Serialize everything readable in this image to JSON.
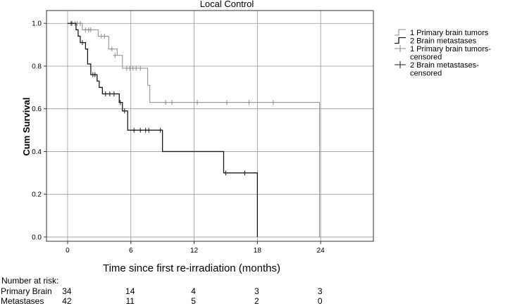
{
  "chart_data": {
    "type": "line",
    "title": "Local Control",
    "xlabel": "Time  since first re-irradiation (months)",
    "ylabel": "Cum Survival",
    "xlim": [
      -2,
      29
    ],
    "ylim": [
      -0.02,
      1.06
    ],
    "xticks": [
      0,
      6,
      12,
      18,
      24
    ],
    "yticks": [
      0.0,
      0.2,
      0.4,
      0.6,
      0.8,
      1.0
    ],
    "ytick_labels": [
      "0.0",
      "0.2",
      "0.4",
      "0.6",
      "0.8",
      "1.0"
    ],
    "grid": true,
    "legend_position": "right",
    "legend": [
      {
        "label": "1 Primary brain tumors",
        "kind": "line",
        "series": 0
      },
      {
        "label": "2 Brain metastases",
        "kind": "line",
        "series": 1
      },
      {
        "label": "1 Primary brain tumors-censored",
        "kind": "censor",
        "series": 0
      },
      {
        "label": "2 Brain metastases-censored",
        "kind": "censor",
        "series": 1
      }
    ],
    "series": [
      {
        "name": "1 Primary brain tumors",
        "color": "#8c8c8c",
        "steps": [
          [
            0,
            1.0
          ],
          [
            1.4,
            0.97
          ],
          [
            2.9,
            0.94
          ],
          [
            3.9,
            0.88
          ],
          [
            4.7,
            0.85
          ],
          [
            5.2,
            0.79
          ],
          [
            7.6,
            0.71
          ],
          [
            7.8,
            0.63
          ],
          [
            23.9,
            0.0
          ]
        ],
        "end_x": 24.0,
        "censored": [
          [
            0.3,
            1.0
          ],
          [
            0.7,
            1.0
          ],
          [
            0.9,
            1.0
          ],
          [
            1.2,
            1.0
          ],
          [
            1.7,
            0.97
          ],
          [
            2.0,
            0.97
          ],
          [
            2.2,
            0.97
          ],
          [
            3.2,
            0.94
          ],
          [
            3.5,
            0.94
          ],
          [
            4.2,
            0.88
          ],
          [
            4.5,
            0.85
          ],
          [
            5.6,
            0.79
          ],
          [
            5.9,
            0.79
          ],
          [
            6.2,
            0.79
          ],
          [
            6.5,
            0.79
          ],
          [
            6.9,
            0.79
          ],
          [
            9.3,
            0.63
          ],
          [
            9.9,
            0.63
          ],
          [
            12.3,
            0.63
          ],
          [
            15.1,
            0.63
          ],
          [
            17.2,
            0.63
          ],
          [
            19.5,
            0.63
          ]
        ]
      },
      {
        "name": "2 Brain metastases",
        "color": "#1a1a1a",
        "steps": [
          [
            0,
            1.0
          ],
          [
            0.8,
            0.97
          ],
          [
            1.0,
            0.94
          ],
          [
            1.2,
            0.91
          ],
          [
            1.7,
            0.88
          ],
          [
            1.9,
            0.81
          ],
          [
            2.2,
            0.76
          ],
          [
            2.8,
            0.73
          ],
          [
            3.0,
            0.7
          ],
          [
            3.3,
            0.67
          ],
          [
            4.9,
            0.63
          ],
          [
            5.2,
            0.59
          ],
          [
            5.7,
            0.5
          ],
          [
            9.0,
            0.4
          ],
          [
            14.8,
            0.3
          ],
          [
            18.0,
            0.0
          ]
        ],
        "end_x": 18.0,
        "censored": [
          [
            0.4,
            1.0
          ],
          [
            1.4,
            0.91
          ],
          [
            2.4,
            0.76
          ],
          [
            2.6,
            0.76
          ],
          [
            3.6,
            0.67
          ],
          [
            4.0,
            0.67
          ],
          [
            4.4,
            0.67
          ],
          [
            5.0,
            0.63
          ],
          [
            5.4,
            0.59
          ],
          [
            6.3,
            0.5
          ],
          [
            6.9,
            0.5
          ],
          [
            7.4,
            0.5
          ],
          [
            7.7,
            0.5
          ],
          [
            8.8,
            0.5
          ],
          [
            15.0,
            0.3
          ],
          [
            16.8,
            0.3
          ]
        ]
      }
    ]
  },
  "risk_table": {
    "header": "Number at risk:",
    "x_positions": [
      0,
      6,
      12,
      18,
      24
    ],
    "rows": [
      {
        "name": "Primary Brain",
        "values": [
          "34",
          "14",
          "4",
          "3",
          "3"
        ]
      },
      {
        "name": "Metastases",
        "values": [
          "42",
          "11",
          "5",
          "2",
          "0"
        ]
      }
    ]
  }
}
